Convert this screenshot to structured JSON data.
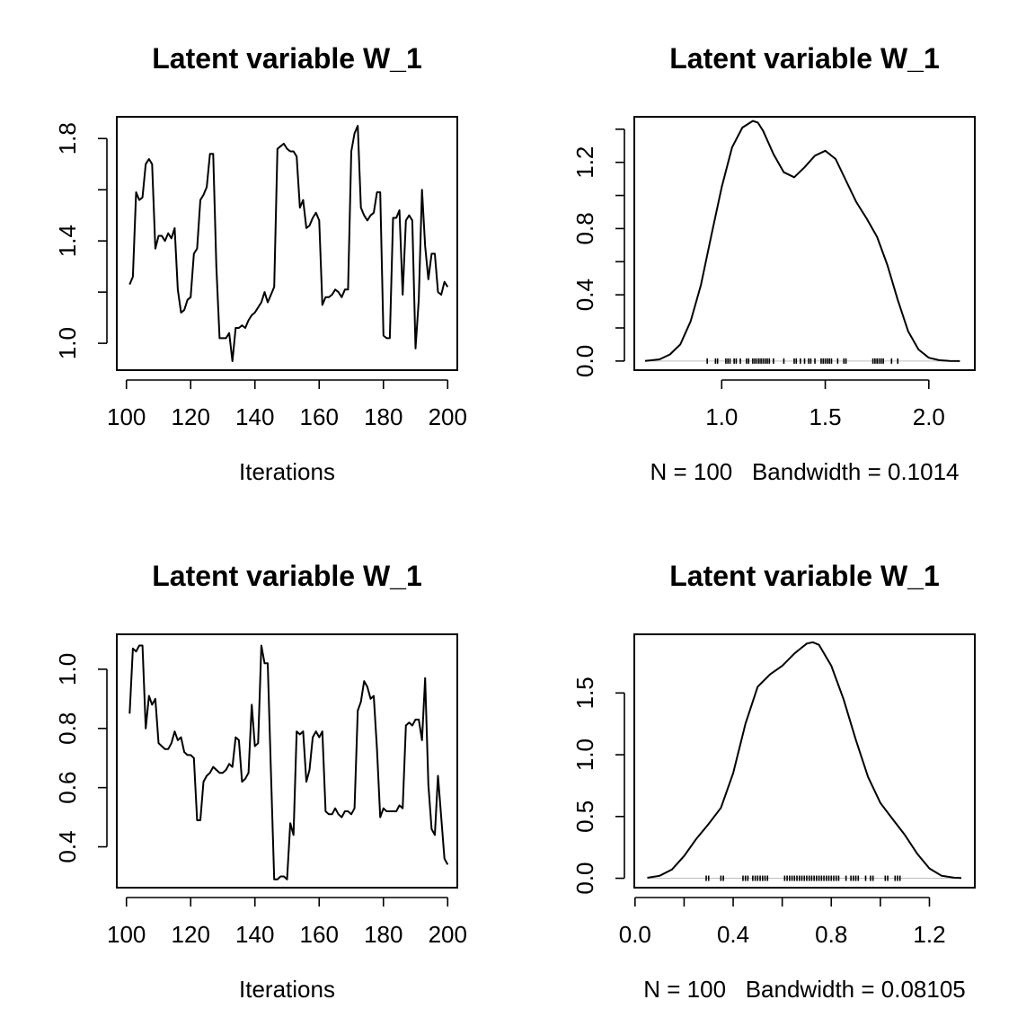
{
  "chart_data": [
    {
      "type": "line",
      "title": "Latent variable W_1",
      "xlabel": "Iterations",
      "ylabel": "",
      "xlim": [
        97,
        203
      ],
      "ylim": [
        0.895,
        1.885
      ],
      "xticks": [
        100,
        120,
        140,
        160,
        180,
        200
      ],
      "yticks": [
        1.0,
        1.2,
        1.4,
        1.6,
        1.8
      ],
      "ytick_labels": [
        "1.0",
        "",
        "1.4",
        "",
        "1.8"
      ],
      "x": [
        101,
        102,
        103,
        104,
        105,
        106,
        107,
        108,
        109,
        110,
        111,
        112,
        113,
        114,
        115,
        116,
        117,
        118,
        119,
        120,
        121,
        122,
        123,
        124,
        125,
        126,
        127,
        128,
        129,
        130,
        131,
        132,
        133,
        134,
        135,
        136,
        137,
        138,
        139,
        140,
        141,
        142,
        143,
        144,
        145,
        146,
        147,
        148,
        149,
        150,
        151,
        152,
        153,
        154,
        155,
        156,
        157,
        158,
        159,
        160,
        161,
        162,
        163,
        164,
        165,
        166,
        167,
        168,
        169,
        170,
        171,
        172,
        173,
        174,
        175,
        176,
        177,
        178,
        179,
        180,
        181,
        182,
        183,
        184,
        185,
        186,
        187,
        188,
        189,
        190,
        191,
        192,
        193,
        194,
        195,
        196,
        197,
        198,
        199,
        200
      ],
      "y": [
        1.23,
        1.26,
        1.59,
        1.56,
        1.57,
        1.7,
        1.72,
        1.7,
        1.37,
        1.42,
        1.42,
        1.4,
        1.43,
        1.41,
        1.45,
        1.21,
        1.12,
        1.13,
        1.17,
        1.18,
        1.35,
        1.37,
        1.56,
        1.58,
        1.61,
        1.74,
        1.74,
        1.3,
        1.02,
        1.02,
        1.02,
        1.04,
        0.93,
        1.06,
        1.06,
        1.07,
        1.06,
        1.09,
        1.11,
        1.12,
        1.14,
        1.16,
        1.2,
        1.16,
        1.19,
        1.22,
        1.76,
        1.77,
        1.78,
        1.76,
        1.75,
        1.75,
        1.73,
        1.53,
        1.56,
        1.45,
        1.46,
        1.49,
        1.51,
        1.48,
        1.15,
        1.18,
        1.18,
        1.19,
        1.21,
        1.2,
        1.18,
        1.21,
        1.21,
        1.75,
        1.82,
        1.85,
        1.53,
        1.5,
        1.48,
        1.5,
        1.51,
        1.59,
        1.59,
        1.03,
        1.02,
        1.02,
        1.49,
        1.49,
        1.52,
        1.19,
        1.48,
        1.5,
        1.48,
        0.98,
        1.17,
        1.6,
        1.38,
        1.25,
        1.35,
        1.35,
        1.2,
        1.19,
        1.24,
        1.22
      ]
    },
    {
      "type": "line",
      "title": "Latent variable W_1",
      "xlabel": "N = 100   Bandwidth = 0.1014",
      "ylabel": "",
      "xlim": [
        0.578,
        2.222
      ],
      "ylim": [
        -0.055,
        1.475
      ],
      "xticks": [
        1.0,
        1.5,
        2.0
      ],
      "xtick_labels": [
        "1.0",
        "1.5",
        "2.0"
      ],
      "yticks": [
        0.0,
        0.2,
        0.4,
        0.6,
        0.8,
        1.0,
        1.2,
        1.4
      ],
      "ytick_labels": [
        "0.0",
        "",
        "0.4",
        "",
        "0.8",
        "",
        "1.2",
        ""
      ],
      "x": [
        0.63,
        0.7,
        0.75,
        0.8,
        0.85,
        0.9,
        0.95,
        1.0,
        1.05,
        1.1,
        1.15,
        1.175,
        1.2,
        1.25,
        1.3,
        1.35,
        1.4,
        1.45,
        1.5,
        1.55,
        1.6,
        1.65,
        1.7,
        1.75,
        1.8,
        1.85,
        1.9,
        1.95,
        2.0,
        2.05,
        2.1,
        2.15
      ],
      "y": [
        0.001,
        0.01,
        0.04,
        0.1,
        0.24,
        0.46,
        0.76,
        1.05,
        1.29,
        1.41,
        1.45,
        1.44,
        1.39,
        1.25,
        1.14,
        1.11,
        1.17,
        1.24,
        1.27,
        1.22,
        1.09,
        0.96,
        0.86,
        0.75,
        0.58,
        0.37,
        0.18,
        0.07,
        0.02,
        0.005,
        0.001,
        0.0
      ],
      "rug": [
        0.93,
        0.97,
        0.98,
        1.02,
        1.03,
        1.04,
        1.06,
        1.07,
        1.09,
        1.12,
        1.13,
        1.15,
        1.16,
        1.17,
        1.18,
        1.19,
        1.2,
        1.21,
        1.22,
        1.23,
        1.25,
        1.3,
        1.35,
        1.36,
        1.38,
        1.4,
        1.42,
        1.43,
        1.45,
        1.48,
        1.49,
        1.5,
        1.51,
        1.52,
        1.53,
        1.56,
        1.59,
        1.6,
        1.73,
        1.74,
        1.75,
        1.76,
        1.77,
        1.78,
        1.82,
        1.85
      ]
    },
    {
      "type": "line",
      "title": "Latent variable W_1",
      "xlabel": "Iterations",
      "ylabel": "",
      "xlim": [
        97,
        203
      ],
      "ylim": [
        0.262,
        1.118
      ],
      "xticks": [
        100,
        120,
        140,
        160,
        180,
        200
      ],
      "yticks": [
        0.4,
        0.6,
        0.8,
        1.0
      ],
      "ytick_labels": [
        "0.4",
        "0.6",
        "0.8",
        "1.0"
      ],
      "x": [
        101,
        102,
        103,
        104,
        105,
        106,
        107,
        108,
        109,
        110,
        111,
        112,
        113,
        114,
        115,
        116,
        117,
        118,
        119,
        120,
        121,
        122,
        123,
        124,
        125,
        126,
        127,
        128,
        129,
        130,
        131,
        132,
        133,
        134,
        135,
        136,
        137,
        138,
        139,
        140,
        141,
        142,
        143,
        144,
        145,
        146,
        147,
        148,
        149,
        150,
        151,
        152,
        153,
        154,
        155,
        156,
        157,
        158,
        159,
        160,
        161,
        162,
        163,
        164,
        165,
        166,
        167,
        168,
        169,
        170,
        171,
        172,
        173,
        174,
        175,
        176,
        177,
        178,
        179,
        180,
        181,
        182,
        183,
        184,
        185,
        186,
        187,
        188,
        189,
        190,
        191,
        192,
        193,
        194,
        195,
        196,
        197,
        198,
        199,
        200
      ],
      "y": [
        0.85,
        1.07,
        1.06,
        1.08,
        1.08,
        0.8,
        0.91,
        0.88,
        0.9,
        0.75,
        0.74,
        0.73,
        0.73,
        0.75,
        0.79,
        0.76,
        0.77,
        0.72,
        0.71,
        0.71,
        0.7,
        0.49,
        0.49,
        0.62,
        0.64,
        0.65,
        0.67,
        0.66,
        0.65,
        0.65,
        0.66,
        0.68,
        0.67,
        0.77,
        0.76,
        0.62,
        0.63,
        0.65,
        0.88,
        0.74,
        0.75,
        1.08,
        1.02,
        1.02,
        0.65,
        0.29,
        0.29,
        0.3,
        0.3,
        0.29,
        0.48,
        0.44,
        0.79,
        0.78,
        0.79,
        0.62,
        0.66,
        0.77,
        0.79,
        0.77,
        0.79,
        0.52,
        0.51,
        0.51,
        0.53,
        0.51,
        0.5,
        0.52,
        0.52,
        0.51,
        0.53,
        0.86,
        0.89,
        0.96,
        0.94,
        0.9,
        0.91,
        0.73,
        0.5,
        0.53,
        0.52,
        0.52,
        0.52,
        0.52,
        0.54,
        0.53,
        0.81,
        0.82,
        0.81,
        0.83,
        0.83,
        0.76,
        0.97,
        0.61,
        0.46,
        0.44,
        0.64,
        0.5,
        0.36,
        0.34
      ]
    },
    {
      "type": "line",
      "title": "Latent variable W_1",
      "xlabel": "N = 100   Bandwidth = 0.08105",
      "ylabel": "",
      "xlim": [
        -0.003,
        1.385
      ],
      "ylim": [
        -0.076,
        1.975
      ],
      "xticks": [
        0.0,
        0.2,
        0.4,
        0.6,
        0.8,
        1.0,
        1.2
      ],
      "xtick_labels": [
        "0.0",
        "",
        "0.4",
        "",
        "0.8",
        "",
        "1.2"
      ],
      "yticks": [
        0.0,
        0.5,
        1.0,
        1.5
      ],
      "ytick_labels": [
        "0.0",
        "0.5",
        "1.0",
        "1.5"
      ],
      "x": [
        0.05,
        0.1,
        0.15,
        0.2,
        0.25,
        0.3,
        0.35,
        0.4,
        0.45,
        0.5,
        0.55,
        0.6,
        0.65,
        0.7,
        0.725,
        0.75,
        0.8,
        0.85,
        0.9,
        0.95,
        1.0,
        1.05,
        1.1,
        1.15,
        1.2,
        1.25,
        1.3,
        1.33
      ],
      "y": [
        0.004,
        0.02,
        0.07,
        0.18,
        0.32,
        0.44,
        0.57,
        0.85,
        1.25,
        1.55,
        1.65,
        1.72,
        1.82,
        1.9,
        1.91,
        1.89,
        1.72,
        1.45,
        1.12,
        0.82,
        0.61,
        0.48,
        0.35,
        0.2,
        0.08,
        0.02,
        0.005,
        0.002
      ],
      "rug": [
        0.29,
        0.3,
        0.35,
        0.36,
        0.44,
        0.45,
        0.46,
        0.48,
        0.49,
        0.5,
        0.51,
        0.52,
        0.53,
        0.54,
        0.61,
        0.62,
        0.63,
        0.64,
        0.65,
        0.66,
        0.67,
        0.68,
        0.69,
        0.7,
        0.71,
        0.72,
        0.73,
        0.74,
        0.75,
        0.76,
        0.77,
        0.78,
        0.79,
        0.8,
        0.81,
        0.82,
        0.83,
        0.86,
        0.88,
        0.89,
        0.9,
        0.91,
        0.94,
        0.96,
        0.97,
        1.02,
        1.03,
        1.06,
        1.07,
        1.08
      ]
    }
  ]
}
